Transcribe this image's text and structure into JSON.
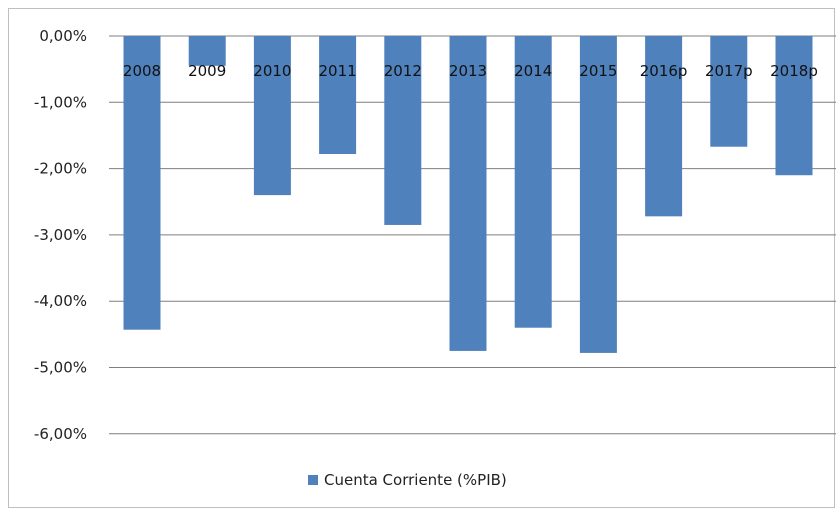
{
  "chart_data": {
    "type": "bar",
    "categories": [
      "2008",
      "2009",
      "2010",
      "2011",
      "2012",
      "2013",
      "2014",
      "2015",
      "2016p",
      "2017p",
      "2018p"
    ],
    "series": [
      {
        "name": "Cuenta Corriente (%PIB)",
        "values": [
          -4.43,
          -0.45,
          -2.4,
          -1.78,
          -2.85,
          -4.75,
          -4.4,
          -4.78,
          -2.72,
          -1.67,
          -2.1
        ]
      }
    ],
    "yticks": [
      0,
      -1,
      -2,
      -3,
      -4,
      -5,
      -6
    ],
    "ytick_labels": [
      "0,00%",
      "-1,00%",
      "-2,00%",
      "-3,00%",
      "-4,00%",
      "-5,00%",
      "-6,00%"
    ],
    "ylim": [
      -6.7,
      0
    ],
    "grid": true,
    "legend_position": "bottom",
    "bar_color": "#4f81bd",
    "grid_color": "#7f7f7f"
  }
}
